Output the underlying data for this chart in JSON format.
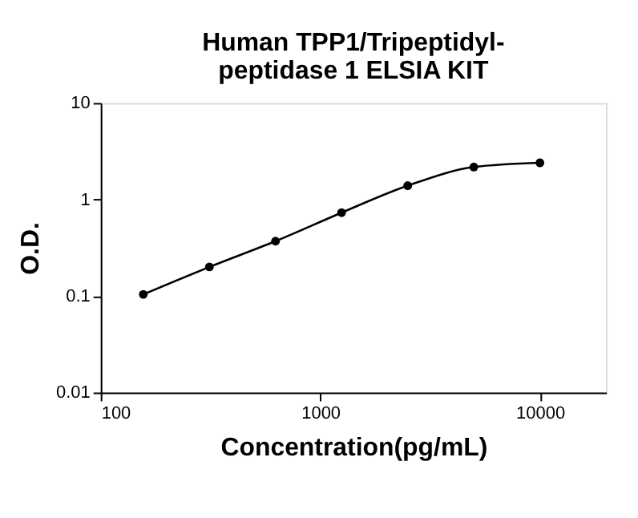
{
  "chart_data": {
    "type": "scatter",
    "title": [
      "Human TPP1/Tripeptidyl-",
      "peptidase 1 ELSIA KIT"
    ],
    "xlabel": "Concentration(pg/mL)",
    "ylabel": "O.D.",
    "log": "xy",
    "xlim": [
      100,
      20000
    ],
    "xticks": [
      100,
      1000,
      10000
    ],
    "ylim": [
      0.01,
      10
    ],
    "yticks": [
      0.01,
      0.1,
      1,
      10
    ],
    "grid": false,
    "legend": false,
    "marker": "circle",
    "x": [
      156.25,
      312.5,
      625,
      1250,
      2500,
      5000,
      10000
    ],
    "series": [
      {
        "color": "#000000",
        "values": [
          0.104,
          0.2,
          0.37,
          0.73,
          1.39,
          2.17,
          2.4
        ]
      },
      {
        "type": "line",
        "color": "#000000",
        "line_style": "solid",
        "marker": "none",
        "values": [
          0.104,
          0.2,
          0.37,
          0.73,
          1.39,
          2.17,
          2.4
        ]
      }
    ]
  }
}
